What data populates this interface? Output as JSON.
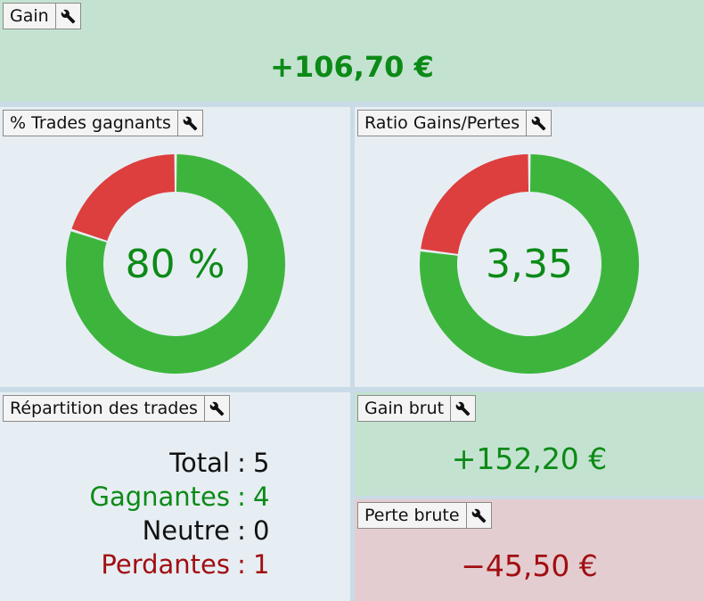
{
  "panels": {
    "gain": {
      "title": "Gain",
      "value": "+106,70 €"
    },
    "win_pct": {
      "title": "% Trades gagnants",
      "center": "80 %",
      "fraction": 0.8
    },
    "ratio": {
      "title": "Ratio Gains/Pertes",
      "center": "3,35",
      "fraction": 0.77
    },
    "distribution": {
      "title": "Répartition des trades",
      "rows": [
        {
          "label": "Total",
          "sep": ":",
          "value": "5"
        },
        {
          "label": "Gagnantes",
          "sep": ":",
          "value": "4"
        },
        {
          "label": "Neutre",
          "sep": ":",
          "value": "0"
        },
        {
          "label": "Perdantes",
          "sep": ":",
          "value": "1"
        }
      ]
    },
    "gross_gain": {
      "title": "Gain brut",
      "value": "+152,20 €"
    },
    "gross_loss": {
      "title": "Perte brute",
      "value": "−45,50 €"
    }
  },
  "icons": {
    "settings": "wrench-icon"
  },
  "colors": {
    "win": "#3db53d",
    "loss": "#dd3e3e",
    "positive_text": "#0c8a16",
    "negative_text": "#a10e12"
  }
}
